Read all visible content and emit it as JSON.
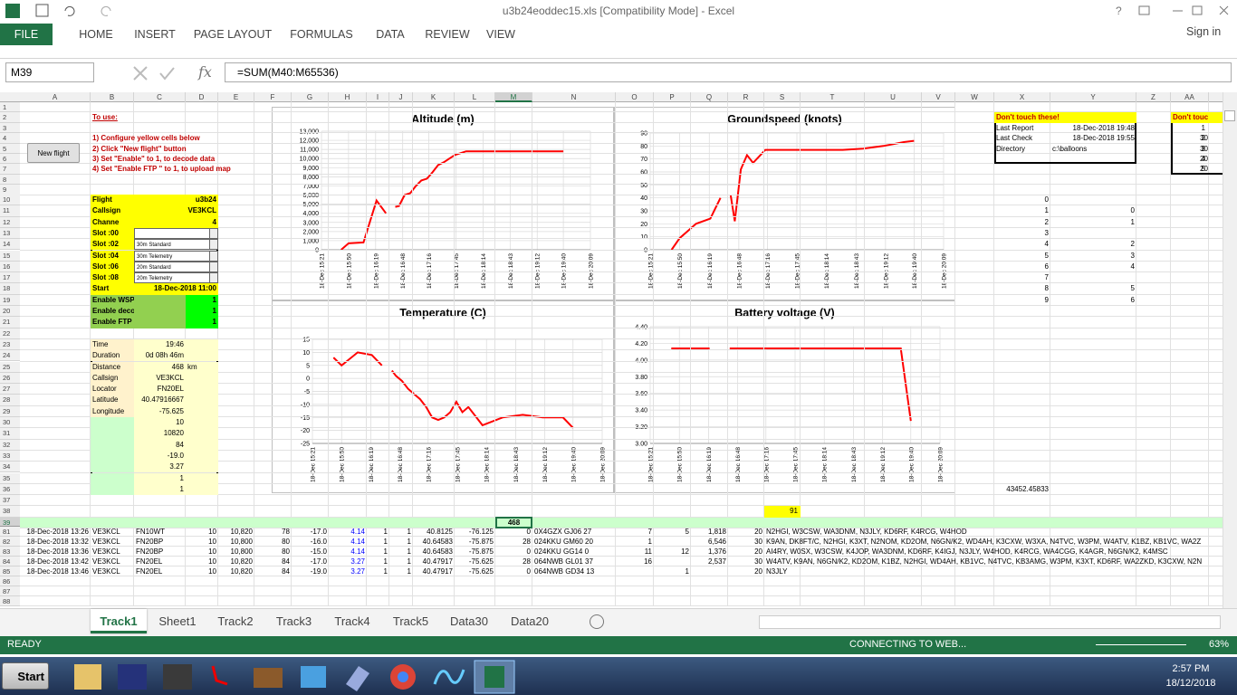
{
  "window": {
    "title": "u3b24eoddec15.xls  [Compatibility Mode] - Excel",
    "tabs": [
      "FILE",
      "HOME",
      "INSERT",
      "PAGE LAYOUT",
      "FORMULAS",
      "DATA",
      "REVIEW",
      "VIEW"
    ],
    "sign_in": "Sign in"
  },
  "formula_bar": {
    "name_box": "M39",
    "fx_label": "fx",
    "formula": "=SUM(M40:M65536)"
  },
  "column_headers": [
    "A",
    "B",
    "C",
    "D",
    "E",
    "F",
    "G",
    "H",
    "I",
    "J",
    "K",
    "L",
    "M",
    "N",
    "O",
    "P",
    "Q",
    "R",
    "S",
    "T",
    "U",
    "V",
    "W",
    "X",
    "Y",
    "Z",
    "AA"
  ],
  "row_headers": [
    1,
    2,
    3,
    4,
    5,
    6,
    7,
    8,
    9,
    10,
    11,
    12,
    13,
    14,
    15,
    16,
    17,
    18,
    19,
    20,
    21,
    22,
    23,
    24,
    25,
    26,
    27,
    28,
    29,
    30,
    31,
    32,
    33,
    34,
    35,
    36,
    37,
    38,
    39,
    81,
    82,
    83,
    84,
    85,
    86,
    87,
    88
  ],
  "instructions": {
    "heading": "To use:",
    "steps": [
      "1) Configure yellow cells below",
      "2) Click \"New flight\" button",
      "3) Set \"Enable\" to 1, to decode data",
      "4) Set \"Enable FTP \" to 1, to upload map"
    ]
  },
  "button": "New flight",
  "flight_config": [
    {
      "label": "Flight",
      "value": "u3b24"
    },
    {
      "label": "Callsign",
      "value": "VE3KCL"
    },
    {
      "label": "Channe",
      "value": "4"
    },
    {
      "label": "Slot :00",
      "dropdown": true
    },
    {
      "label": "Slot :02",
      "value": "30m Standard",
      "dropdown": true
    },
    {
      "label": "Slot :04",
      "value": "30m Telemetry",
      "dropdown": true
    },
    {
      "label": "Slot :06",
      "value": "20m Standard",
      "dropdown": true
    },
    {
      "label": "Slot :08",
      "value": "20m Telemetry",
      "dropdown": true
    },
    {
      "label": "Start",
      "value": "18-Dec-2018 11:00"
    },
    {
      "label": "Enable WSPRnet da",
      "value": "1"
    },
    {
      "label": "Enable decode",
      "value": "1"
    },
    {
      "label": "Enable FTP",
      "value": "1"
    }
  ],
  "status_panel": [
    {
      "label": "Time",
      "value": "19:46"
    },
    {
      "label": "Duration",
      "value": "0d 08h 46m"
    },
    {
      "label": "Distance",
      "value": "468",
      "unit": "km"
    },
    {
      "label": "Callsign",
      "value": "VE3KCL"
    },
    {
      "label": "Locator",
      "value": "FN20EL"
    },
    {
      "label": "Latitude",
      "value": "40.47916667"
    },
    {
      "label": "Longitude",
      "value": "-75.625"
    },
    {
      "value": "10"
    },
    {
      "value": "10820"
    },
    {
      "value": "84"
    },
    {
      "value": "-19.0"
    },
    {
      "value": "3.27"
    },
    {
      "value": "1"
    },
    {
      "value": "1"
    }
  ],
  "x_column": [
    0,
    1,
    2,
    3,
    4,
    5,
    6,
    7,
    8,
    9
  ],
  "y_column": [
    null,
    0,
    1,
    null,
    2,
    3,
    4,
    null,
    5,
    6
  ],
  "x36_value": "43452.45833",
  "info_panel": {
    "header": "Don't touch these!",
    "rows": [
      {
        "label": "Last Report",
        "value": "18-Dec-2018 19:48"
      },
      {
        "label": "Last Check",
        "value": "18-Dec-2018 19:55"
      },
      {
        "label": "Directory",
        "value": "c:\\balloons"
      }
    ]
  },
  "aa_panel": {
    "header": "Don't touc",
    "rows": [
      [
        "1"
      ],
      [
        "2",
        "30"
      ],
      [
        "3",
        "30"
      ],
      [
        "4",
        "20"
      ],
      [
        "5",
        "20"
      ]
    ]
  },
  "row38_value": "91",
  "row39_sum": "468",
  "data_rows": [
    [
      "18-Dec-2018 13:26",
      "VE3KCL",
      "FN10WT",
      "10",
      "10,820",
      "78",
      "-17.0",
      "4.14",
      "1",
      "1",
      "40.8125",
      "-76.125",
      "0",
      "0X4GZX GJ06 27",
      "7",
      "5",
      "1,818",
      "20",
      "N2HGI, W3CSW, WA3DNM, N3JLY, KD6RF, K4RCG, W4HOD"
    ],
    [
      "18-Dec-2018 13:32",
      "VE3KCL",
      "FN20BP",
      "10",
      "10,800",
      "80",
      "-16.0",
      "4.14",
      "1",
      "1",
      "40.64583",
      "-75.875",
      "28",
      "024KKU GM60 20",
      "1",
      null,
      "6,546",
      "30",
      "K9AN, DK8FT/C, N2HGI, K3XT, N2NOM, KD2OM, N6GN/K2, WD4AH, K3CXW, W3XA, N4TVC, W3PM, W4ATV, K1BZ, KB1VC, WA2Z"
    ],
    [
      "18-Dec-2018 13:36",
      "VE3KCL",
      "FN20BP",
      "10",
      "10,800",
      "80",
      "-15.0",
      "4.14",
      "1",
      "1",
      "40.64583",
      "-75.875",
      "0",
      "024KKU GG14 0",
      "11",
      "12",
      "1,376",
      "20",
      "AI4RY, W0SX, W3CSW, K4JOP, WA3DNM, KD6RF, K4IGJ, N3JLY, W4HOD, K4RCG, WA4CGG, K4AGR, N6GN/K2, K4MSC"
    ],
    [
      "18-Dec-2018 13:42",
      "VE3KCL",
      "FN20EL",
      "10",
      "10,820",
      "84",
      "-17.0",
      "3.27",
      "1",
      "1",
      "40.47917",
      "-75.625",
      "28",
      "064NWB GL01 37",
      "16",
      null,
      "2,537",
      "30",
      "W4ATV, K9AN, N6GN/K2, KD2OM, K1BZ, N2HGI, WD4AH, KB1VC, N4TVC, KB3AMG, W3PM, K3XT, KD6RF, WA2ZKD, K3CXW, N2N"
    ],
    [
      "18-Dec-2018 13:46",
      "VE3KCL",
      "FN20EL",
      "10",
      "10,820",
      "84",
      "-19.0",
      "3.27",
      "1",
      "1",
      "40.47917",
      "-75.625",
      "0",
      "064NWB GD34 13",
      null,
      "1",
      null,
      "20",
      "N3JLY"
    ]
  ],
  "chart_data": [
    {
      "type": "line",
      "title": "Altitude (m)",
      "grid": true,
      "xlim": [
        "18-Dec 15:21",
        "18-Dec 20:09"
      ],
      "xticks": [
        "18-Dec 15:21",
        "18-Dec 15:50",
        "18-Dec 16:19",
        "18-Dec 16:48",
        "18-Dec 17:16",
        "18-Dec 17:45",
        "18-Dec 18:14",
        "18-Dec 18:43",
        "18-Dec 19:12",
        "18-Dec 19:40",
        "18-Dec 20:09"
      ],
      "x": [
        "18-Dec 15:42",
        "18-Dec 15:50",
        "18-Dec 16:06",
        "18-Dec 16:20",
        "18-Dec 16:30",
        "18-Dec 16:35",
        "18-Dec 16:40",
        "18-Dec 16:44",
        "18-Dec 16:50",
        "18-Dec 16:56",
        "18-Dec 17:02",
        "18-Dec 17:08",
        "18-Dec 17:14",
        "18-Dec 17:20",
        "18-Dec 17:26",
        "18-Dec 17:32",
        "18-Dec 17:38",
        "18-Dec 17:44",
        "18-Dec 17:50",
        "18-Dec 17:56",
        "18-Dec 18:10",
        "18-Dec 18:30",
        "18-Dec 18:50",
        "18-Dec 19:10",
        "18-Dec 19:30",
        "18-Dec 19:40"
      ],
      "ylim": [
        0,
        13000
      ],
      "yticks": [
        0,
        {
          "value": 1000,
          "label": "1,000"
        },
        {
          "value": 2000,
          "label": "2,000"
        },
        {
          "value": 3000,
          "label": "3,000"
        },
        {
          "value": 4000,
          "label": "4,000"
        },
        {
          "value": 5000,
          "label": "5,000"
        },
        {
          "value": 6000,
          "label": "6,000"
        },
        {
          "value": 7000,
          "label": "7,000"
        },
        {
          "value": 8000,
          "label": "8,000"
        },
        {
          "value": 9000,
          "label": "9,000"
        },
        {
          "value": 10000,
          "label": "10,000"
        },
        {
          "value": 11000,
          "label": "11,000"
        },
        {
          "value": 12000,
          "label": "12,000"
        },
        {
          "value": 13000,
          "label": "13,000"
        }
      ],
      "color": "#ff0000",
      "values": [
        0,
        700,
        800,
        5400,
        4000,
        null,
        4700,
        4800,
        6000,
        6200,
        7000,
        7600,
        7800,
        8500,
        9300,
        9600,
        10000,
        10400,
        10600,
        10800,
        10800,
        10800,
        10800,
        10800,
        10800,
        10800
      ]
    },
    {
      "type": "line",
      "title": "Groundspeed (knots)",
      "grid": true,
      "xlim": [
        "18-Dec 15:21",
        "18-Dec 20:09"
      ],
      "xticks": [
        "18-Dec 15:21",
        "18-Dec 15:50",
        "18-Dec 16:19",
        "18-Dec 16:48",
        "18-Dec 17:16",
        "18-Dec 17:45",
        "18-Dec 18:14",
        "18-Dec 18:43",
        "18-Dec 19:12",
        "18-Dec 19:40",
        "18-Dec 20:09"
      ],
      "x": [
        "18-Dec 15:42",
        "18-Dec 15:50",
        "18-Dec 16:06",
        "18-Dec 16:20",
        "18-Dec 16:30",
        "18-Dec 16:35",
        "18-Dec 16:40",
        "18-Dec 16:44",
        "18-Dec 16:50",
        "18-Dec 16:56",
        "18-Dec 17:02",
        "18-Dec 17:08",
        "18-Dec 17:14",
        "18-Dec 17:20",
        "18-Dec 17:26",
        "18-Dec 17:32",
        "18-Dec 17:38",
        "18-Dec 17:44",
        "18-Dec 17:50",
        "18-Dec 17:56",
        "18-Dec 18:10",
        "18-Dec 18:30",
        "18-Dec 18:50",
        "18-Dec 19:10",
        "18-Dec 19:30",
        "18-Dec 19:40"
      ],
      "ylim": [
        0,
        90
      ],
      "yticks": [
        0,
        10,
        20,
        30,
        40,
        50,
        60,
        70,
        80,
        90
      ],
      "color": "#ff0000",
      "values": [
        0,
        9,
        20,
        24,
        40,
        null,
        42,
        22,
        62,
        73,
        67,
        72,
        77,
        77,
        77,
        77,
        77,
        77,
        77,
        77,
        77,
        77,
        78,
        80,
        83,
        84
      ]
    },
    {
      "type": "line",
      "title": "Temperature (C)",
      "grid": true,
      "xlim": [
        "18-Dec 15:21",
        "18-Dec 20:09"
      ],
      "xticks": [
        "18-Dec 15:21",
        "18-Dec 15:50",
        "18-Dec 16:19",
        "18-Dec 16:48",
        "18-Dec 17:16",
        "18-Dec 17:45",
        "18-Dec 18:14",
        "18-Dec 18:43",
        "18-Dec 19:12",
        "18-Dec 19:40",
        "18-Dec 20:09"
      ],
      "x": [
        "18-Dec 15:42",
        "18-Dec 15:50",
        "18-Dec 16:06",
        "18-Dec 16:20",
        "18-Dec 16:30",
        "18-Dec 16:35",
        "18-Dec 16:40",
        "18-Dec 16:44",
        "18-Dec 16:50",
        "18-Dec 16:56",
        "18-Dec 17:02",
        "18-Dec 17:08",
        "18-Dec 17:14",
        "18-Dec 17:20",
        "18-Dec 17:26",
        "18-Dec 17:32",
        "18-Dec 17:38",
        "18-Dec 17:44",
        "18-Dec 17:50",
        "18-Dec 17:56",
        "18-Dec 18:10",
        "18-Dec 18:30",
        "18-Dec 18:50",
        "18-Dec 19:10",
        "18-Dec 19:30",
        "18-Dec 19:40"
      ],
      "ylim": [
        -25,
        15
      ],
      "yticks": [
        -25,
        -20,
        -15,
        -10,
        -5,
        0,
        5,
        10,
        15
      ],
      "color": "#ff0000",
      "values": [
        8,
        5,
        10,
        9,
        5,
        null,
        3,
        1,
        -1,
        -4,
        -6,
        -8,
        -11,
        -15,
        -16,
        -15,
        -13,
        -9,
        -13,
        -11,
        -18,
        -15,
        -14,
        -15,
        -15,
        -19
      ]
    },
    {
      "type": "line",
      "title": "Battery voltage (V)",
      "grid": true,
      "xlim": [
        "18-Dec 15:21",
        "18-Dec 20:09"
      ],
      "xticks": [
        "18-Dec 15:21",
        "18-Dec 15:50",
        "18-Dec 16:19",
        "18-Dec 16:48",
        "18-Dec 17:16",
        "18-Dec 17:45",
        "18-Dec 18:14",
        "18-Dec 18:43",
        "18-Dec 19:12",
        "18-Dec 19:40",
        "18-Dec 20:09"
      ],
      "x": [
        "18-Dec 15:42",
        "18-Dec 15:50",
        "18-Dec 16:06",
        "18-Dec 16:20",
        "18-Dec 16:30",
        "18-Dec 16:35",
        "18-Dec 16:40",
        "18-Dec 16:44",
        "18-Dec 16:50",
        "18-Dec 16:56",
        "18-Dec 17:02",
        "18-Dec 17:08",
        "18-Dec 17:14",
        "18-Dec 17:20",
        "18-Dec 17:26",
        "18-Dec 17:32",
        "18-Dec 17:38",
        "18-Dec 17:44",
        "18-Dec 17:50",
        "18-Dec 17:56",
        "18-Dec 18:10",
        "18-Dec 18:30",
        "18-Dec 18:50",
        "18-Dec 19:10",
        "18-Dec 19:30",
        "18-Dec 19:40"
      ],
      "ylim": [
        3,
        4.4
      ],
      "yticks": [
        {
          "value": 3,
          "label": "3.00"
        },
        {
          "value": 3.2,
          "label": "3.20"
        },
        {
          "value": 3.4,
          "label": "3.40"
        },
        {
          "value": 3.6,
          "label": "3.60"
        },
        {
          "value": 3.8,
          "label": "3.80"
        },
        {
          "value": 4,
          "label": "4.00"
        },
        {
          "value": 4.2,
          "label": "4.20"
        },
        {
          "value": 4.4,
          "label": "4.40"
        }
      ],
      "color": "#ff0000",
      "values": [
        4.14,
        4.14,
        4.14,
        4.14,
        null,
        null,
        4.14,
        4.14,
        4.14,
        4.14,
        4.14,
        4.14,
        4.14,
        4.14,
        4.14,
        4.14,
        4.14,
        4.14,
        4.14,
        4.14,
        4.14,
        4.14,
        4.14,
        4.14,
        4.14,
        3.27
      ]
    }
  ],
  "sheet_tabs": [
    "Track1",
    "Sheet1",
    "Track2",
    "Track3",
    "Track4",
    "Track5",
    "Data30",
    "Data20"
  ],
  "status_bar": {
    "left": "READY",
    "message": "CONNECTING TO WEB...",
    "zoom": "63%"
  },
  "taskbar": {
    "start": "Start",
    "time": "2:57 PM",
    "date": "18/12/2018"
  }
}
